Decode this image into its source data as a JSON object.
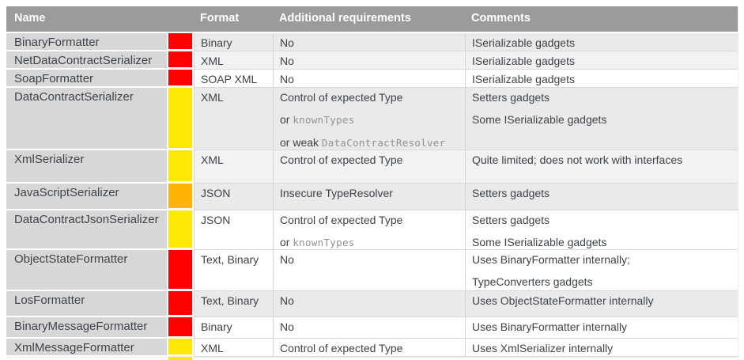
{
  "colors": {
    "header_bg": "#9b9b9b",
    "header_text": "#ffffff",
    "name_col_bg": "#d7d7d7",
    "band_gray": "#eaeaea",
    "band_light": "#f2f2f2",
    "band_white": "#ffffff",
    "risk_red": "#fe0000",
    "risk_yellow": "#ffe805",
    "risk_orange": "#ffb405",
    "body_text": "#3d4349",
    "mono_text": "#8f9296"
  },
  "table": {
    "header": {
      "name": "Name",
      "format": "Format",
      "additional": "Additional requirements",
      "comments": "Comments"
    },
    "rows": [
      {
        "name": "BinaryFormatter",
        "risk": "red",
        "format": "Binary",
        "additional": [
          [
            {
              "text": "No"
            }
          ]
        ],
        "comments": [
          [
            {
              "text": "ISerializable gadgets"
            }
          ]
        ],
        "band": "gray",
        "height": 23
      },
      {
        "name": "NetDataContractSerializer",
        "risk": "red",
        "format": "XML",
        "additional": [
          [
            {
              "text": "No"
            }
          ]
        ],
        "comments": [
          [
            {
              "text": "ISerializable gadgets"
            }
          ]
        ],
        "band": "light",
        "height": 23
      },
      {
        "name": "SoapFormatter",
        "risk": "red",
        "format": "SOAP XML",
        "additional": [
          [
            {
              "text": "No"
            }
          ]
        ],
        "comments": [
          [
            {
              "text": "ISerializable gadgets"
            }
          ]
        ],
        "band": "white",
        "height": 23
      },
      {
        "name": "DataContractSerializer",
        "risk": "yellow",
        "format": "XML",
        "additional": [
          [
            {
              "text": "Control of expected Type"
            }
          ],
          [
            {
              "text": "or "
            },
            {
              "text": "knownTypes",
              "mono": true
            }
          ],
          [
            {
              "text": "or weak "
            },
            {
              "text": "DataContractResolver",
              "mono": true
            }
          ]
        ],
        "comments": [
          [
            {
              "text": "Setters gadgets"
            }
          ],
          [
            {
              "text": "Some ISerializable gadgets"
            }
          ]
        ],
        "band": "gray",
        "height": 79
      },
      {
        "name": "XmlSerializer",
        "risk": "yellow",
        "format": "XML",
        "additional": [
          [
            {
              "text": "Control of expected Type"
            }
          ]
        ],
        "comments": [
          [
            {
              "text": "Quite limited; does not work with interfaces"
            }
          ]
        ],
        "band": "light",
        "height": 42
      },
      {
        "name": "JavaScriptSerializer",
        "risk": "orange",
        "format": "JSON",
        "additional": [
          [
            {
              "text": "Insecure TypeResolver"
            }
          ]
        ],
        "comments": [
          [
            {
              "text": "Setters gadgets"
            }
          ]
        ],
        "band": "gray",
        "height": 34
      },
      {
        "name": "DataContractJsonSerializer",
        "risk": "yellow",
        "format": "JSON",
        "additional": [
          [
            {
              "text": "Control of expected Type"
            }
          ],
          [
            {
              "text": "or "
            },
            {
              "text": "knownTypes",
              "mono": true
            }
          ]
        ],
        "comments": [
          [
            {
              "text": "Setters gadgets"
            }
          ],
          [
            {
              "text": "Some ISerializable gadgets"
            }
          ]
        ],
        "band": "white",
        "height": 50
      },
      {
        "name": "ObjectStateFormatter",
        "risk": "red",
        "format": "Text, Binary",
        "additional": [
          [
            {
              "text": "No"
            }
          ]
        ],
        "comments": [
          [
            {
              "text": "Uses BinaryFormatter internally;"
            }
          ],
          [
            {
              "text": "TypeConverters gadgets"
            }
          ]
        ],
        "band": "white",
        "height": 52
      },
      {
        "name": "LosFormatter",
        "risk": "red",
        "format": "Text, Binary",
        "additional": [
          [
            {
              "text": "No"
            }
          ]
        ],
        "comments": [
          [
            {
              "text": "Uses ObjectStateFormatter internally"
            }
          ]
        ],
        "band": "gray",
        "height": 33
      },
      {
        "name": "BinaryMessageFormatter",
        "risk": "red",
        "format": "Binary",
        "additional": [
          [
            {
              "text": "No"
            }
          ]
        ],
        "comments": [
          [
            {
              "text": "Uses BinaryFormatter internally"
            }
          ]
        ],
        "band": "white",
        "height": 27
      },
      {
        "name": "XmlMessageFormatter",
        "risk": "yellow",
        "format": "XML",
        "additional": [
          [
            {
              "text": "Control of expected Type"
            }
          ]
        ],
        "comments": [
          [
            {
              "text": "Uses XmlSerializer internally"
            }
          ]
        ],
        "band": "white",
        "height": 23
      }
    ],
    "cutoff_next_row": {
      "risk": "yellow"
    }
  }
}
